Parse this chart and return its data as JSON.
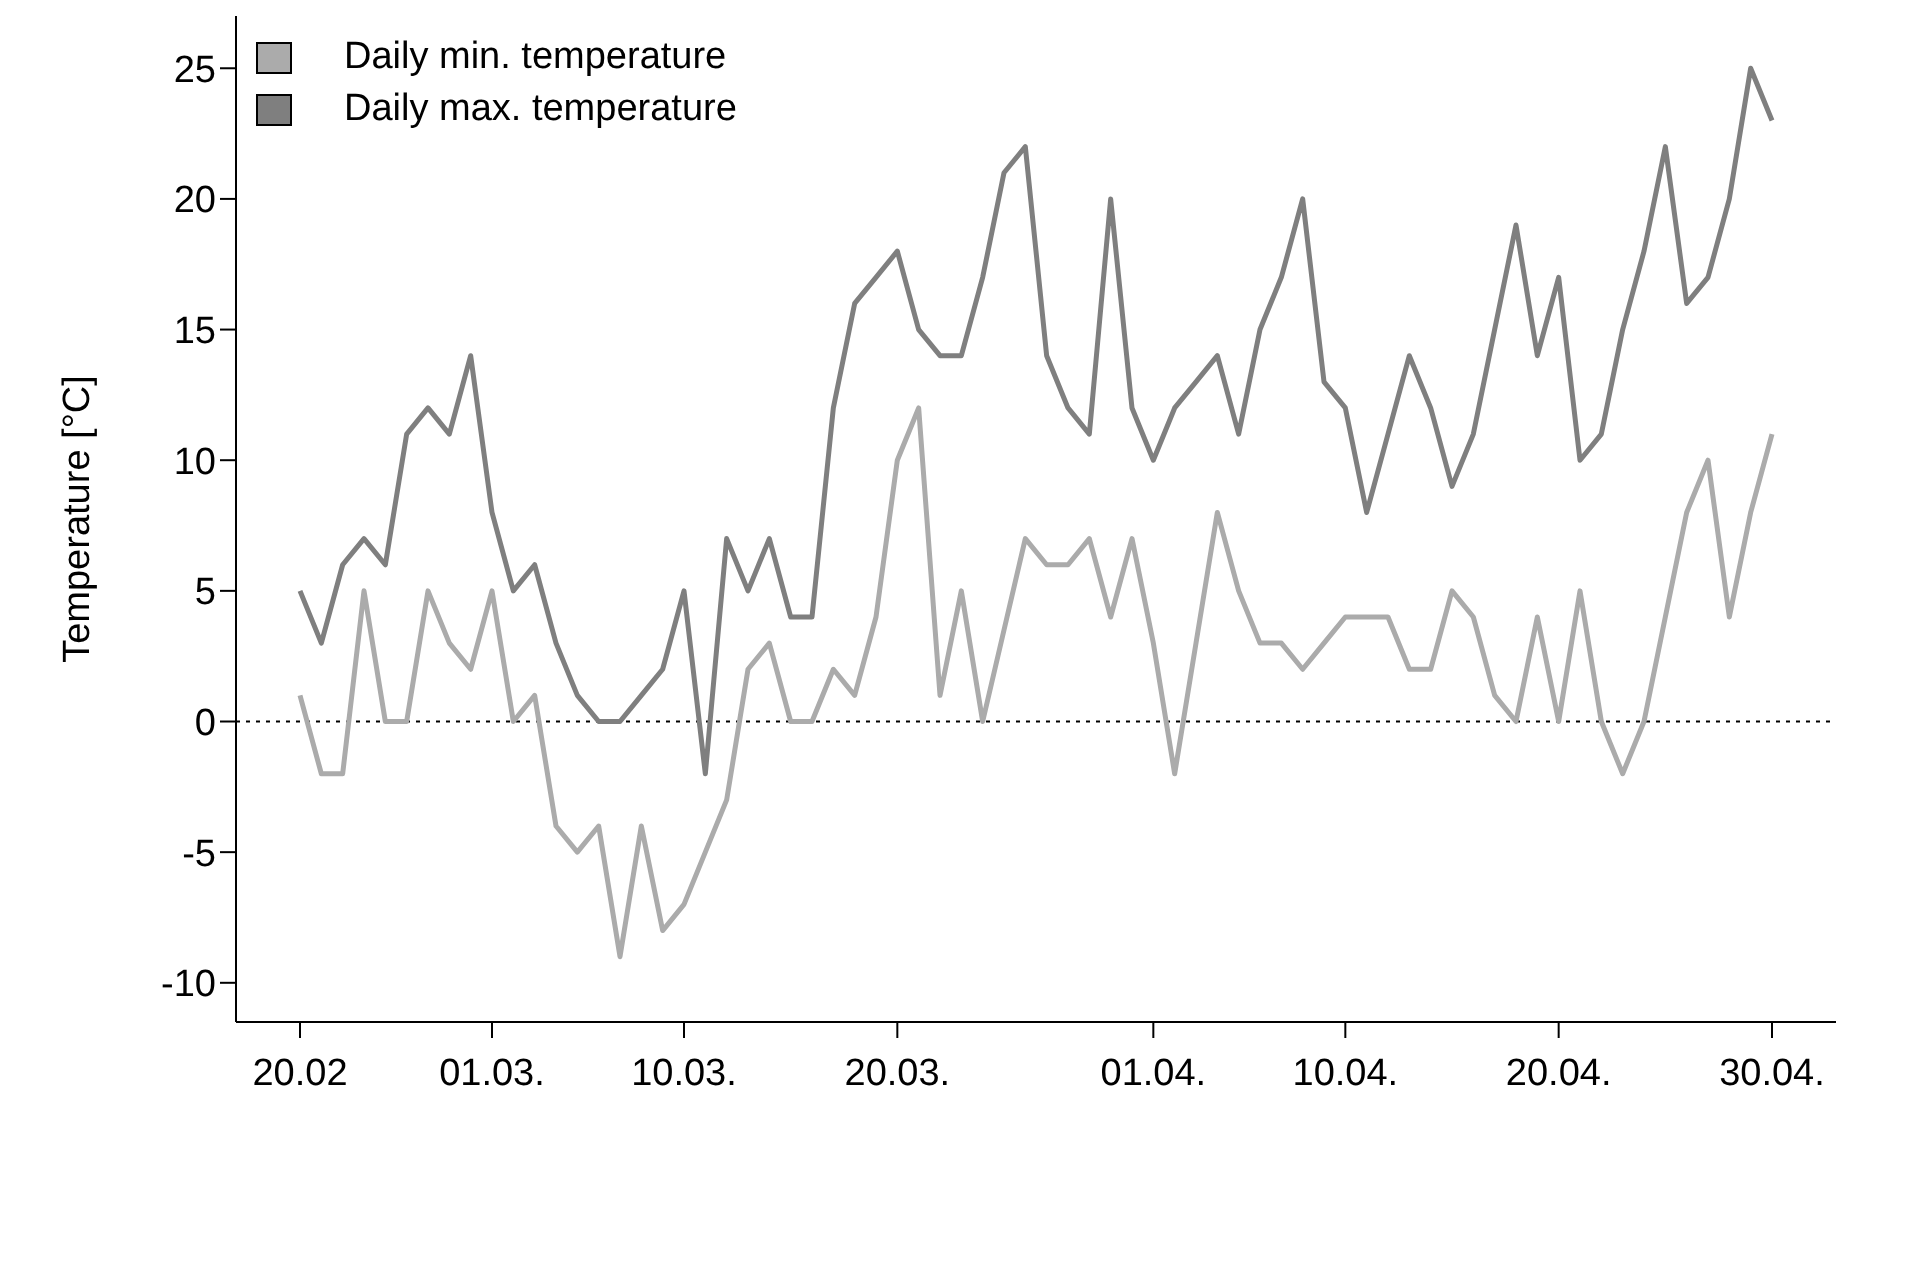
{
  "chart_data": {
    "type": "line",
    "ylabel": "Temperature [°C]",
    "x": [
      "--02-20",
      "--02-21",
      "--02-22",
      "--02-23",
      "--02-24",
      "--02-25",
      "--02-26",
      "--02-27",
      "--02-28",
      "--03-01",
      "--03-02",
      "--03-03",
      "--03-04",
      "--03-05",
      "--03-06",
      "--03-07",
      "--03-08",
      "--03-09",
      "--03-10",
      "--03-11",
      "--03-12",
      "--03-13",
      "--03-14",
      "--03-15",
      "--03-16",
      "--03-17",
      "--03-18",
      "--03-19",
      "--03-20",
      "--03-21",
      "--03-22",
      "--03-23",
      "--03-24",
      "--03-25",
      "--03-26",
      "--03-27",
      "--03-28",
      "--03-29",
      "--03-30",
      "--03-31",
      "--04-01",
      "--04-02",
      "--04-03",
      "--04-04",
      "--04-05",
      "--04-06",
      "--04-07",
      "--04-08",
      "--04-09",
      "--04-10",
      "--04-11",
      "--04-12",
      "--04-13",
      "--04-14",
      "--04-15",
      "--04-16",
      "--04-17",
      "--04-18",
      "--04-19",
      "--04-20",
      "--04-21",
      "--04-22",
      "--04-23",
      "--04-24",
      "--04-25",
      "--04-26",
      "--04-27",
      "--04-28",
      "--04-29",
      "--04-30"
    ],
    "series": [
      {
        "name": "Daily min. temperature",
        "color": "#ababab",
        "values": [
          1,
          -2,
          -2,
          5,
          0,
          0,
          5,
          3,
          2,
          5,
          0,
          1,
          -4,
          -5,
          -4,
          -9,
          -4,
          -8,
          -7,
          -5,
          -3,
          2,
          3,
          0,
          0,
          2,
          1,
          4,
          10,
          12,
          1,
          5,
          0,
          3.5,
          7,
          6,
          6,
          7,
          4,
          7,
          3,
          -2,
          3,
          8,
          5,
          3,
          3,
          2,
          3,
          4,
          4,
          4,
          2,
          2,
          5,
          4,
          1,
          0,
          4,
          0,
          5,
          0,
          -2,
          0,
          4,
          8,
          10,
          4,
          8,
          11
        ]
      },
      {
        "name": "Daily max. temperature",
        "color": "#7f7f7f",
        "values": [
          5,
          3,
          6,
          7,
          6,
          11,
          12,
          11,
          14,
          8,
          5,
          6,
          3,
          1,
          0,
          0,
          1,
          2,
          5,
          -2,
          7,
          5,
          7,
          4,
          4,
          12,
          16,
          17,
          18,
          15,
          14,
          14,
          17,
          21,
          22,
          14,
          12,
          11,
          20,
          12,
          10,
          12,
          13,
          14,
          11,
          15,
          17,
          20,
          13,
          12,
          8,
          11,
          14,
          12,
          9,
          11,
          15,
          19,
          14,
          17,
          10,
          11,
          15,
          18,
          22,
          16,
          17,
          20,
          25,
          23
        ]
      }
    ],
    "xlim": [
      "--02-17",
      "--05-03"
    ],
    "xticks": [
      {
        "value": "--02-20",
        "label": "20.02"
      },
      {
        "value": "--03-01",
        "label": "01.03."
      },
      {
        "value": "--03-10",
        "label": "10.03."
      },
      {
        "value": "--03-20",
        "label": "20.03."
      },
      {
        "value": "--04-01",
        "label": "01.04."
      },
      {
        "value": "--04-10",
        "label": "10.04."
      },
      {
        "value": "--04-20",
        "label": "20.04."
      },
      {
        "value": "--04-30",
        "label": "30.04."
      }
    ],
    "ylim": [
      -11.5,
      27
    ],
    "yticks": [
      -10,
      -5,
      0,
      5,
      10,
      15,
      20,
      25
    ],
    "ref_lines": [
      {
        "axis": "y",
        "value": 0,
        "color": "#000000",
        "line_style": "dotted"
      }
    ],
    "legend": "top left",
    "grid": false,
    "marker": "none",
    "line_style": "solid"
  }
}
